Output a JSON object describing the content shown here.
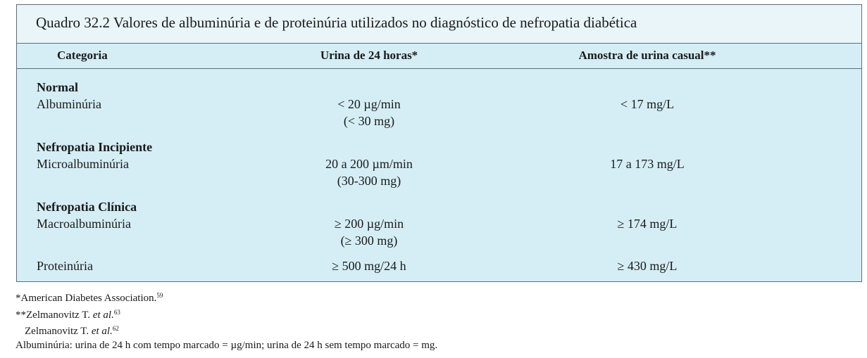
{
  "table": {
    "title": "Quadro 32.2 Valores de albuminúria e de proteinúria utilizados no diagnóstico de nefropatia diabética",
    "headers": [
      "Categoria",
      "Urina de 24 horas*",
      "Amostra de urina casual**"
    ],
    "groups": [
      {
        "heading": "Normal",
        "rows": [
          {
            "label": "Albuminúria",
            "urine24": "< 20 µg/min",
            "urine24_sub": "(< 30 mg)",
            "casual": "< 17 mg/L"
          }
        ]
      },
      {
        "heading": "Nefropatia Incipiente",
        "rows": [
          {
            "label": "Microalbuminúria",
            "urine24": "20 a 200 µm/min",
            "urine24_sub": "(30-300 mg)",
            "casual": "17 a 173 mg/L"
          }
        ]
      },
      {
        "heading": "Nefropatia Clínica",
        "rows": [
          {
            "label": "Macroalbuminúria",
            "urine24": "≥ 200 µg/min",
            "urine24_sub": "(≥ 300 mg)",
            "casual": "≥ 174 mg/L"
          },
          {
            "label": "Proteinúria",
            "urine24": "≥ 500 mg/24 h",
            "urine24_sub": "",
            "casual": "≥ 430 mg/L"
          }
        ]
      }
    ]
  },
  "footnotes": {
    "fn1_text": "*American Diabetes Association.",
    "fn1_ref": "59",
    "fn2_prefix": "**Zelmanovitz T. ",
    "fn2_etal": "et al.",
    "fn2_ref": "63",
    "fn3_prefix": "Zelmanovitz T. ",
    "fn3_etal": "et al.",
    "fn3_ref": "62",
    "fn4_text": "Albuminúria: urina de 24 h com tempo marcado = µg/min; urina de 24 h sem tempo marcado = mg."
  }
}
